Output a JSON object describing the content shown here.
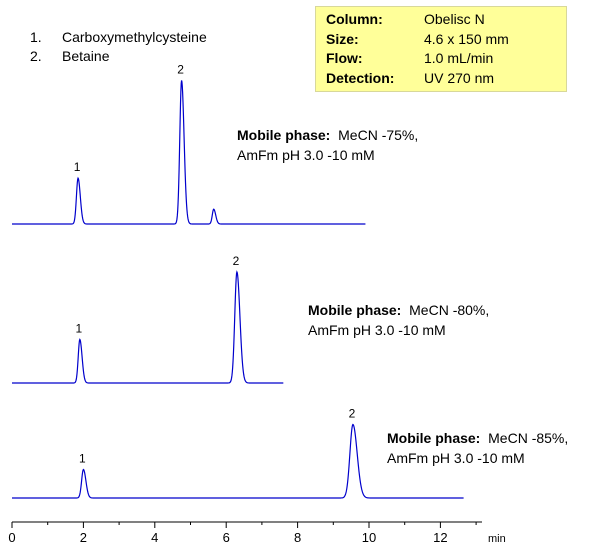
{
  "legend": [
    {
      "num": "1.",
      "name": "Carboxymethylcysteine"
    },
    {
      "num": "2.",
      "name": "Betaine"
    }
  ],
  "conditions": [
    {
      "label": "Column:",
      "value": "Obelisc N"
    },
    {
      "label": "Size:",
      "value": "4.6 x 150 mm"
    },
    {
      "label": "Flow:",
      "value": "1.0 mL/min"
    },
    {
      "label": "Detection:",
      "value": "UV 270 nm"
    }
  ],
  "colors": {
    "trace": "#0000cc",
    "params_bg": "#ffff99"
  },
  "chart_data": {
    "type": "line",
    "xaxis": {
      "unit": "min",
      "range": [
        0,
        13
      ],
      "ticks": [
        0,
        2,
        4,
        6,
        8,
        10,
        12
      ],
      "tick_labels": [
        "0",
        "2",
        "4",
        "6",
        "8",
        "10",
        "12"
      ]
    },
    "series": [
      {
        "mobile_phase_label": "Mobile phase:",
        "mobile_phase_line1": "MeCN -75%,",
        "mobile_phase_line2": "AmFm pH 3.0 -10 mM",
        "x_end": 9.9,
        "peaks": [
          {
            "label": "1",
            "t": 1.85,
            "height": 0.31,
            "sigma": 0.045
          },
          {
            "label": "2",
            "t": 4.75,
            "height": 0.97,
            "sigma": 0.05
          },
          {
            "label": "",
            "t": 5.65,
            "height": 0.1,
            "sigma": 0.04
          }
        ]
      },
      {
        "mobile_phase_label": "Mobile phase:",
        "mobile_phase_line1": "MeCN -80%,",
        "mobile_phase_line2": "AmFm pH 3.0 -10 mM",
        "x_end": 7.6,
        "peaks": [
          {
            "label": "1",
            "t": 1.9,
            "height": 0.29,
            "sigma": 0.045
          },
          {
            "label": "2",
            "t": 6.3,
            "height": 0.74,
            "sigma": 0.06
          }
        ]
      },
      {
        "mobile_phase_label": "Mobile phase:",
        "mobile_phase_line1": "MeCN -85%,",
        "mobile_phase_line2": "AmFm pH 3.0 -10 mM",
        "x_end": 12.65,
        "peaks": [
          {
            "label": "1",
            "t": 2.0,
            "height": 0.19,
            "sigma": 0.05
          },
          {
            "label": "2",
            "t": 9.55,
            "height": 0.49,
            "sigma": 0.085
          }
        ]
      }
    ]
  }
}
